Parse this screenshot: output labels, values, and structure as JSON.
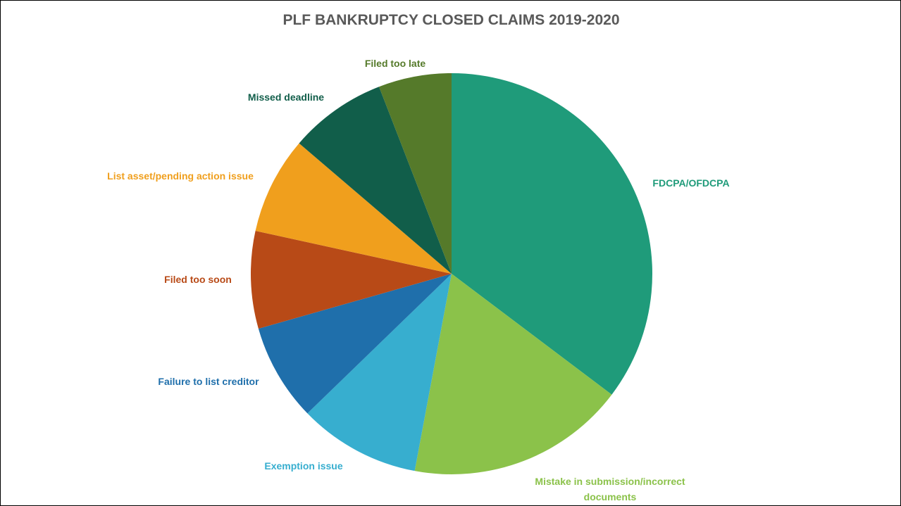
{
  "chart_data": {
    "type": "pie",
    "title": "PLF BANKRUPTCY CLOSED CLAIMS 2019-2020",
    "categories": [
      "FDCPA/OFDCPA",
      "Mistake in submission/incorrect documents",
      "Exemption issue",
      "Failure to list creditor",
      "Filed too soon",
      "List asset/pending action issue",
      "Missed deadline",
      "Filed too late"
    ],
    "values": [
      18,
      9,
      5,
      4,
      4,
      4,
      4,
      3
    ],
    "colors": [
      "#1f9b7a",
      "#8bc24a",
      "#37aecf",
      "#1f6fab",
      "#b84a17",
      "#f09f1d",
      "#115e4a",
      "#557a2a"
    ],
    "label_colors": [
      "#1f9b7a",
      "#8bc24a",
      "#37aecf",
      "#1f6fab",
      "#b84a17",
      "#f09f1d",
      "#115e4a",
      "#557a2a"
    ]
  }
}
